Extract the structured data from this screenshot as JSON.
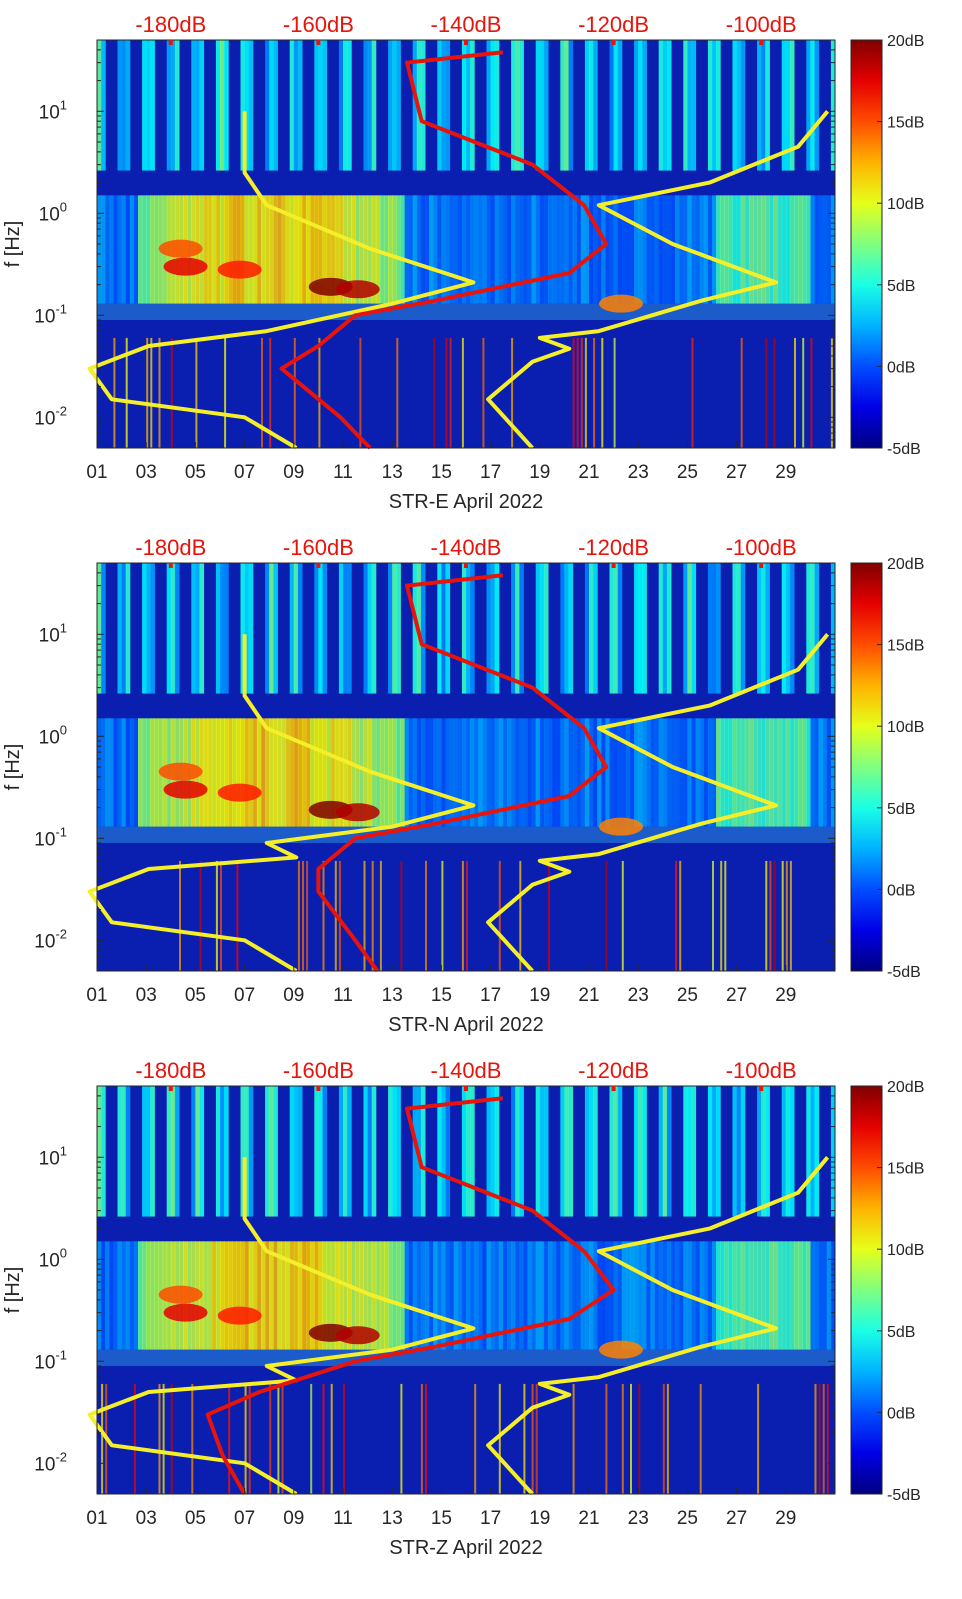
{
  "chart_data": [
    {
      "type": "heatmap",
      "xlabel": "STR-E April 2022",
      "ylabel": "f [Hz]",
      "x_tick_labels": [
        "01",
        "03",
        "05",
        "07",
        "09",
        "11",
        "13",
        "15",
        "17",
        "19",
        "21",
        "23",
        "25",
        "27",
        "29"
      ],
      "y_tick_labels": [
        {
          "base": "10",
          "exp": "1",
          "value": 10
        },
        {
          "base": "10",
          "exp": "0",
          "value": 1
        },
        {
          "base": "10",
          "exp": "-1",
          "value": 0.1
        },
        {
          "base": "10",
          "exp": "-2",
          "value": 0.01
        }
      ],
      "y_scale": "log",
      "ylim": [
        0.005,
        50
      ],
      "xlim_days": [
        1,
        31
      ],
      "top_axis_labels": [
        "-180dB",
        "-160dB",
        "-140dB",
        "-120dB",
        "-100dB"
      ],
      "top_axis_range_db": [
        -190,
        -90
      ],
      "colorbar": {
        "labels": [
          "20dB",
          "15dB",
          "10dB",
          "5dB",
          "0dB",
          "-5dB"
        ],
        "range_db": [
          -5,
          20
        ],
        "colormap": "jet"
      },
      "series": [
        {
          "color": "#f5ef2a",
          "x_top_db": [
            -170,
            -170,
            -167,
            -153,
            -139,
            -150,
            -167,
            -183,
            -191,
            -188,
            -170,
            -163
          ],
          "y_hz": [
            10,
            2.5,
            1.2,
            0.45,
            0.21,
            0.13,
            0.07,
            0.05,
            0.03,
            0.015,
            0.01,
            0.005
          ]
        },
        {
          "color": "#f5ef2a",
          "x_top_db": [
            -91,
            -95,
            -101,
            -107,
            -122,
            -112,
            -98,
            -108,
            -122,
            -130,
            -126,
            -131,
            -137,
            -131
          ],
          "y_hz": [
            10,
            4.5,
            3,
            2,
            1.2,
            0.5,
            0.21,
            0.14,
            0.07,
            0.06,
            0.047,
            0.035,
            0.015,
            0.005
          ]
        },
        {
          "color": "#e8140c",
          "x_top_db": [
            -135,
            -148,
            -146,
            -131,
            -124,
            -121,
            -126,
            -144,
            -155,
            -160,
            -165,
            -157,
            -153
          ],
          "y_hz": [
            38,
            30,
            8,
            3,
            1.2,
            0.5,
            0.26,
            0.14,
            0.1,
            0.05,
            0.03,
            0.01,
            0.005
          ]
        }
      ]
    },
    {
      "type": "heatmap",
      "xlabel": "STR-N April 2022",
      "ylabel": "f [Hz]",
      "x_tick_labels": [
        "01",
        "03",
        "05",
        "07",
        "09",
        "11",
        "13",
        "15",
        "17",
        "19",
        "21",
        "23",
        "25",
        "27",
        "29"
      ],
      "y_tick_labels": [
        {
          "base": "10",
          "exp": "1",
          "value": 10
        },
        {
          "base": "10",
          "exp": "0",
          "value": 1
        },
        {
          "base": "10",
          "exp": "-1",
          "value": 0.1
        },
        {
          "base": "10",
          "exp": "-2",
          "value": 0.01
        }
      ],
      "y_scale": "log",
      "ylim": [
        0.005,
        50
      ],
      "xlim_days": [
        1,
        31
      ],
      "top_axis_labels": [
        "-180dB",
        "-160dB",
        "-140dB",
        "-120dB",
        "-100dB"
      ],
      "top_axis_range_db": [
        -190,
        -90
      ],
      "colorbar": {
        "labels": [
          "20dB",
          "15dB",
          "10dB",
          "5dB",
          "0dB",
          "-5dB"
        ],
        "range_db": [
          -5,
          20
        ],
        "colormap": "jet"
      },
      "series": [
        {
          "color": "#f5ef2a",
          "x_top_db": [
            -170,
            -170,
            -167,
            -153,
            -139,
            -150,
            -167,
            -163,
            -183,
            -191,
            -188,
            -170,
            -163
          ],
          "y_hz": [
            10,
            2.5,
            1.2,
            0.45,
            0.21,
            0.13,
            0.09,
            0.065,
            0.05,
            0.03,
            0.015,
            0.01,
            0.005
          ]
        },
        {
          "color": "#f5ef2a",
          "x_top_db": [
            -91,
            -95,
            -101,
            -107,
            -122,
            -112,
            -98,
            -108,
            -122,
            -130,
            -126,
            -131,
            -137,
            -131
          ],
          "y_hz": [
            10,
            4.5,
            3,
            2,
            1.2,
            0.5,
            0.21,
            0.14,
            0.07,
            0.06,
            0.047,
            0.035,
            0.015,
            0.005
          ]
        },
        {
          "color": "#e8140c",
          "x_top_db": [
            -135,
            -148,
            -146,
            -131,
            -124,
            -121,
            -126,
            -144,
            -155,
            -160,
            -160,
            -155,
            -152
          ],
          "y_hz": [
            38,
            30,
            8,
            3,
            1.2,
            0.5,
            0.26,
            0.14,
            0.1,
            0.05,
            0.03,
            0.01,
            0.005
          ]
        }
      ]
    },
    {
      "type": "heatmap",
      "xlabel": "STR-Z April 2022",
      "ylabel": "f [Hz]",
      "x_tick_labels": [
        "01",
        "03",
        "05",
        "07",
        "09",
        "11",
        "13",
        "15",
        "17",
        "19",
        "21",
        "23",
        "25",
        "27",
        "29"
      ],
      "y_tick_labels": [
        {
          "base": "10",
          "exp": "1",
          "value": 10
        },
        {
          "base": "10",
          "exp": "0",
          "value": 1
        },
        {
          "base": "10",
          "exp": "-1",
          "value": 0.1
        },
        {
          "base": "10",
          "exp": "-2",
          "value": 0.01
        }
      ],
      "y_scale": "log",
      "ylim": [
        0.005,
        50
      ],
      "xlim_days": [
        1,
        31
      ],
      "top_axis_labels": [
        "-180dB",
        "-160dB",
        "-140dB",
        "-120dB",
        "-100dB"
      ],
      "top_axis_range_db": [
        -190,
        -90
      ],
      "colorbar": {
        "labels": [
          "20dB",
          "15dB",
          "10dB",
          "5dB",
          "0dB",
          "-5dB"
        ],
        "range_db": [
          -5,
          20
        ],
        "colormap": "jet"
      },
      "series": [
        {
          "color": "#f5ef2a",
          "x_top_db": [
            -170,
            -170,
            -167,
            -153,
            -139,
            -150,
            -167,
            -163,
            -183,
            -191,
            -188,
            -170,
            -163
          ],
          "y_hz": [
            10,
            2.5,
            1.2,
            0.45,
            0.21,
            0.13,
            0.09,
            0.065,
            0.05,
            0.03,
            0.015,
            0.01,
            0.005
          ]
        },
        {
          "color": "#f5ef2a",
          "x_top_db": [
            -91,
            -95,
            -101,
            -107,
            -122,
            -112,
            -98,
            -108,
            -122,
            -130,
            -126,
            -131,
            -137,
            -131
          ],
          "y_hz": [
            10,
            4.5,
            3,
            2,
            1.2,
            0.5,
            0.21,
            0.14,
            0.07,
            0.06,
            0.047,
            0.035,
            0.015,
            0.005
          ]
        },
        {
          "color": "#e8140c",
          "x_top_db": [
            -135,
            -148,
            -146,
            -131,
            -124,
            -120,
            -126,
            -144,
            -155,
            -168,
            -175,
            -173,
            -170
          ],
          "y_hz": [
            38,
            30,
            8,
            3,
            1.2,
            0.5,
            0.26,
            0.14,
            0.1,
            0.05,
            0.03,
            0.012,
            0.005
          ]
        }
      ]
    }
  ]
}
